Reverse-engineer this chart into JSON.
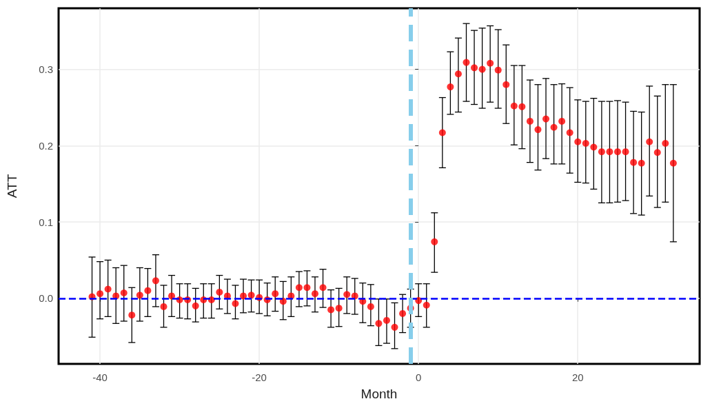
{
  "chart_data": {
    "type": "scatter",
    "xlabel": "Month",
    "ylabel": "ATT",
    "x": [
      -41,
      -40,
      -39,
      -38,
      -37,
      -36,
      -35,
      -34,
      -33,
      -32,
      -31,
      -30,
      -29,
      -28,
      -27,
      -26,
      -25,
      -24,
      -23,
      -22,
      -21,
      -20,
      -19,
      -18,
      -17,
      -16,
      -15,
      -14,
      -13,
      -12,
      -11,
      -10,
      -9,
      -8,
      -7,
      -6,
      -5,
      -4,
      -3,
      -2,
      -1,
      0,
      1,
      2,
      3,
      4,
      5,
      6,
      7,
      8,
      9,
      10,
      11,
      12,
      13,
      14,
      15,
      16,
      17,
      18,
      19,
      20,
      21,
      22,
      23,
      24,
      25,
      26,
      27,
      28,
      29,
      30,
      31,
      32
    ],
    "values": [
      0.002,
      0.006,
      0.012,
      0.003,
      0.007,
      -0.022,
      0.004,
      0.01,
      0.023,
      -0.011,
      0.003,
      -0.002,
      -0.002,
      -0.01,
      -0.002,
      -0.002,
      0.008,
      0.003,
      -0.007,
      0.003,
      0.004,
      0.001,
      -0.002,
      0.006,
      -0.004,
      0.003,
      0.014,
      0.014,
      0.006,
      0.014,
      -0.015,
      -0.013,
      0.005,
      0.003,
      -0.004,
      -0.011,
      -0.033,
      -0.029,
      -0.038,
      -0.02,
      -0.013,
      -0.003,
      -0.009,
      0.074,
      0.217,
      0.277,
      0.294,
      0.309,
      0.302,
      0.3,
      0.308,
      0.299,
      0.28,
      0.252,
      0.251,
      0.232,
      0.221,
      0.235,
      0.224,
      0.232,
      0.217,
      0.205,
      0.203,
      0.198,
      0.192,
      0.192,
      0.192,
      0.192,
      0.178,
      0.177,
      0.205,
      0.191,
      0.203,
      0.177
    ],
    "errors": [
      [
        -0.051,
        0.054
      ],
      [
        -0.027,
        0.048
      ],
      [
        -0.024,
        0.05
      ],
      [
        -0.033,
        0.04
      ],
      [
        -0.03,
        0.043
      ],
      [
        -0.058,
        0.014
      ],
      [
        -0.03,
        0.04
      ],
      [
        -0.024,
        0.039
      ],
      [
        -0.011,
        0.057
      ],
      [
        -0.038,
        0.017
      ],
      [
        -0.024,
        0.03
      ],
      [
        -0.026,
        0.019
      ],
      [
        -0.027,
        0.019
      ],
      [
        -0.031,
        0.013
      ],
      [
        -0.026,
        0.019
      ],
      [
        -0.026,
        0.019
      ],
      [
        -0.014,
        0.03
      ],
      [
        -0.02,
        0.025
      ],
      [
        -0.027,
        0.017
      ],
      [
        -0.019,
        0.025
      ],
      [
        -0.018,
        0.024
      ],
      [
        -0.02,
        0.024
      ],
      [
        -0.023,
        0.02
      ],
      [
        -0.017,
        0.028
      ],
      [
        -0.028,
        0.022
      ],
      [
        -0.024,
        0.028
      ],
      [
        -0.011,
        0.035
      ],
      [
        -0.01,
        0.036
      ],
      [
        -0.018,
        0.028
      ],
      [
        -0.012,
        0.038
      ],
      [
        -0.038,
        0.011
      ],
      [
        -0.037,
        0.013
      ],
      [
        -0.02,
        0.028
      ],
      [
        -0.021,
        0.026
      ],
      [
        -0.032,
        0.02
      ],
      [
        -0.036,
        0.018
      ],
      [
        -0.062,
        -0.001
      ],
      [
        -0.059,
        -0.001
      ],
      [
        -0.066,
        -0.006
      ],
      [
        -0.045,
        0.005
      ],
      [
        -0.038,
        0.012
      ],
      [
        -0.024,
        0.019
      ],
      [
        -0.038,
        0.019
      ],
      [
        0.034,
        0.112
      ],
      [
        0.171,
        0.263
      ],
      [
        0.241,
        0.323
      ],
      [
        0.244,
        0.341
      ],
      [
        0.258,
        0.36
      ],
      [
        0.254,
        0.351
      ],
      [
        0.249,
        0.354
      ],
      [
        0.257,
        0.357
      ],
      [
        0.249,
        0.352
      ],
      [
        0.229,
        0.332
      ],
      [
        0.201,
        0.305
      ],
      [
        0.196,
        0.305
      ],
      [
        0.178,
        0.286
      ],
      [
        0.168,
        0.28
      ],
      [
        0.183,
        0.288
      ],
      [
        0.176,
        0.28
      ],
      [
        0.176,
        0.281
      ],
      [
        0.164,
        0.276
      ],
      [
        0.152,
        0.26
      ],
      [
        0.151,
        0.258
      ],
      [
        0.143,
        0.262
      ],
      [
        0.125,
        0.258
      ],
      [
        0.125,
        0.258
      ],
      [
        0.126,
        0.259
      ],
      [
        0.128,
        0.257
      ],
      [
        0.111,
        0.245
      ],
      [
        0.109,
        0.244
      ],
      [
        0.134,
        0.278
      ],
      [
        0.119,
        0.265
      ],
      [
        0.126,
        0.28
      ],
      [
        0.074,
        0.28
      ]
    ],
    "color": "#ff0000",
    "marker": "circle",
    "xlim": [
      -45.2,
      35.3
    ],
    "xticks": [
      -40,
      -20,
      0,
      20
    ],
    "ylim": [
      -0.086,
      0.38
    ],
    "yticks": [
      {
        "value": 0,
        "label": "0.0"
      },
      0.1,
      0.2,
      0.3
    ],
    "ref_lines": [
      {
        "axis": "y",
        "value": 0,
        "color": "#0000ff",
        "line_style": "dashed"
      },
      {
        "axis": "x",
        "value": -1,
        "color": "#87ceeb",
        "line_style": "dashed"
      }
    ],
    "grid": true
  }
}
